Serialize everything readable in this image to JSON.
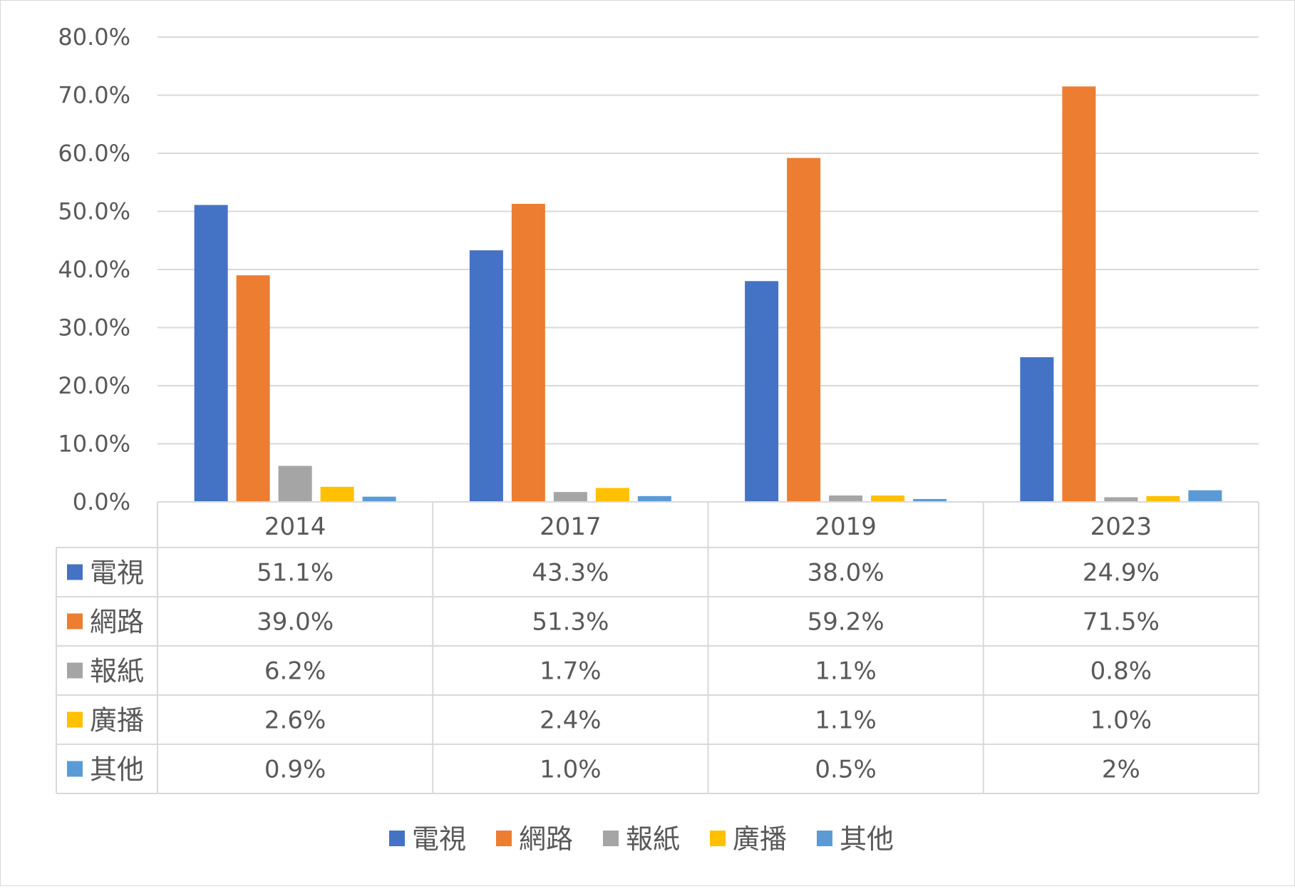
{
  "chart_data": {
    "type": "bar",
    "title": "",
    "xlabel": "",
    "ylabel": "",
    "ylim": [
      0,
      80
    ],
    "yticks": [
      "0.0%",
      "10.0%",
      "20.0%",
      "30.0%",
      "40.0%",
      "50.0%",
      "60.0%",
      "70.0%",
      "80.0%"
    ],
    "grid": true,
    "legend_position": "bottom",
    "categories": [
      "2014",
      "2017",
      "2019",
      "2023"
    ],
    "series": [
      {
        "name": "電視",
        "color": "#4472C4",
        "values": [
          51.1,
          43.3,
          38.0,
          24.9
        ],
        "labels": [
          "51.1%",
          "43.3%",
          "38.0%",
          "24.9%"
        ]
      },
      {
        "name": "網路",
        "color": "#ED7D31",
        "values": [
          39.0,
          51.3,
          59.2,
          71.5
        ],
        "labels": [
          "39.0%",
          "51.3%",
          "59.2%",
          "71.5%"
        ]
      },
      {
        "name": "報紙",
        "color": "#A5A5A5",
        "values": [
          6.2,
          1.7,
          1.1,
          0.8
        ],
        "labels": [
          "6.2%",
          "1.7%",
          "1.1%",
          "0.8%"
        ]
      },
      {
        "name": "廣播",
        "color": "#FFC000",
        "values": [
          2.6,
          2.4,
          1.1,
          1.0
        ],
        "labels": [
          "2.6%",
          "2.4%",
          "1.1%",
          "1.0%"
        ]
      },
      {
        "name": "其他",
        "color": "#5B9BD5",
        "values": [
          0.9,
          1.0,
          0.5,
          2.0
        ],
        "labels": [
          "0.9%",
          "1.0%",
          "0.5%",
          "2%"
        ]
      }
    ]
  }
}
